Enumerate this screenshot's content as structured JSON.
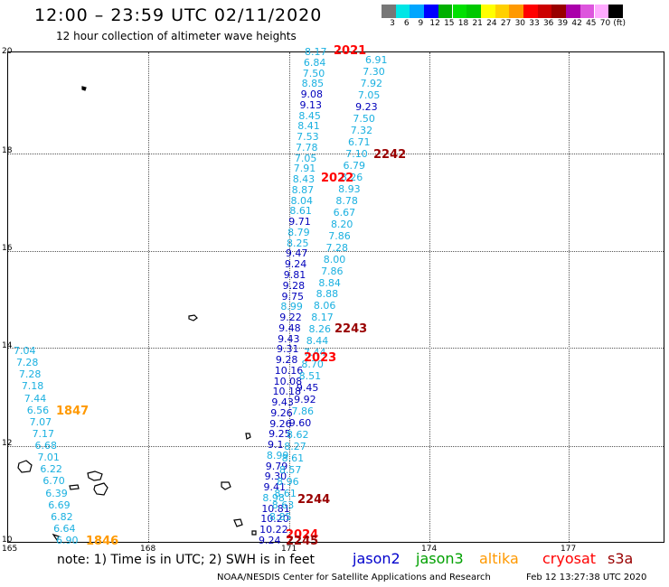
{
  "title": "12:00 – 23:59 UTC 02/11/2020",
  "subtitle": "12 hour collection of altimeter wave heights",
  "colorbar": {
    "colors": [
      "#777777",
      "#00e6e6",
      "#00a6ff",
      "#0000ff",
      "#00b000",
      "#00e000",
      "#00c800",
      "#ffff00",
      "#ffd000",
      "#ff9900",
      "#ff0000",
      "#cc0000",
      "#990000",
      "#aa00aa",
      "#dd55dd",
      "#ffaaff",
      "#000000"
    ],
    "labels": [
      "3",
      "6",
      "9",
      "12",
      "15",
      "18",
      "21",
      "24",
      "27",
      "30",
      "33",
      "36",
      "39",
      "42",
      "45",
      "70",
      "(ft)"
    ]
  },
  "axes": {
    "y_ticks": [
      "20",
      "18",
      "16",
      "14",
      "12",
      "10"
    ],
    "x_ticks": [
      "165",
      "168",
      "171",
      "174",
      "177"
    ]
  },
  "track_labels": [
    {
      "text": "2021",
      "color": "#ff0000"
    },
    {
      "text": "2242",
      "color": "#990000"
    },
    {
      "text": "2022",
      "color": "#ff0000"
    },
    {
      "text": "2243",
      "color": "#990000"
    },
    {
      "text": "2023",
      "color": "#ff0000"
    },
    {
      "text": "1847",
      "color": "#ff9900"
    },
    {
      "text": "2244",
      "color": "#990000"
    },
    {
      "text": "2024",
      "color": "#ff0000"
    },
    {
      "text": "2245",
      "color": "#990000"
    },
    {
      "text": "1846",
      "color": "#ff9900"
    }
  ],
  "tracks": {
    "track_2021_cols": [
      {
        "values": [
          "8.17",
          "6.84",
          "7.50",
          "8.85",
          "9.08",
          "9.13",
          "8.45",
          "8.41",
          "7.53",
          "7.78",
          "7.05",
          "7.91",
          "8.43",
          "8.87",
          "8.04",
          "8.61",
          "9.71",
          "8.79",
          "8.25",
          "9.47",
          "9.24",
          "9.81",
          "9.28",
          "9.75",
          "8.99",
          "9.22",
          "9.48",
          "9.43",
          "9.31",
          "9.28",
          "10.16",
          "10.08",
          "10.18",
          "9.43",
          "9.26",
          "9.26",
          "9.25",
          "9.1",
          "8.99",
          "9.79",
          "9.30",
          "9.41",
          "8.98",
          "10.81",
          "10.20",
          "10.22",
          "9.24"
        ]
      },
      {
        "values": [
          "6.91",
          "7.30",
          "7.92",
          "7.05",
          "9.23",
          "7.50",
          "7.32",
          "6.71",
          "7.10",
          "6.79",
          "8.26",
          "8.93",
          "8.78",
          "6.67",
          "8.20",
          "7.86",
          "7.28",
          "8.00",
          "7.86",
          "8.84",
          "8.88",
          "8.06",
          "8.17",
          "8.26",
          "8.44",
          "7.44",
          "8.70",
          "8.51",
          "9.45",
          "9.92",
          "7.86",
          "9.60",
          "8.62",
          "8.27",
          "8.61",
          "8.57",
          "8.96",
          "8.61",
          "8.63",
          "8.85"
        ]
      }
    ],
    "track_1847": [
      "7.04",
      "7.28",
      "7.28",
      "7.18",
      "7.44",
      "6.56",
      "7.07",
      "7.17",
      "6.68",
      "7.01",
      "6.22",
      "6.70",
      "6.39",
      "6.69",
      "6.82",
      "6.64",
      "6.90"
    ]
  },
  "legend": {
    "note": "note: 1) Time is in UTC; 2) SWH is in feet",
    "satellites": [
      {
        "name": "jason2",
        "color": "#0000cc"
      },
      {
        "name": "jason3",
        "color": "#00a000"
      },
      {
        "name": "altika",
        "color": "#ff9900"
      },
      {
        "name": "cryosat",
        "color": "#ff0000"
      },
      {
        "name": "s3a",
        "color": "#990000"
      }
    ]
  },
  "credit": "NOAA/NESDIS Center for Satellite Applications and Research",
  "timestamp": "Feb 12 13:27:38 UTC 2020"
}
